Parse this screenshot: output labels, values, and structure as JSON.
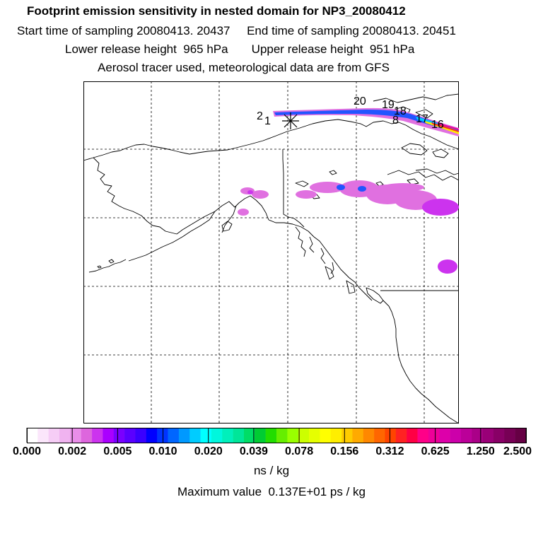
{
  "titles": {
    "line1": "Footprint emission sensitivity in nested domain for NP3_20080412",
    "line2": "Start time of sampling 20080413. 20437     End time of sampling 20080413. 20451",
    "line3": "Lower release height  965 hPa       Upper release height  951 hPa",
    "line4": "Aerosol tracer used, meteorological data are from GFS"
  },
  "colorbar": {
    "tick_labels": [
      "0.000",
      "0.002",
      "0.005",
      "0.010",
      "0.020",
      "0.039",
      "0.078",
      "0.156",
      "0.312",
      "0.625",
      "1.250",
      "2.500"
    ],
    "colors": [
      "#ffffff",
      "#fbe6fb",
      "#f6cdf6",
      "#f0b3f0",
      "#e98ee9",
      "#dd66dd",
      "#cc33ee",
      "#aa00ff",
      "#7a00ff",
      "#5a00ff",
      "#3a00ff",
      "#0000ff",
      "#0033ff",
      "#0066ff",
      "#0099ff",
      "#00ccff",
      "#00ffff",
      "#00f7dd",
      "#00f0bb",
      "#00e699",
      "#00dd66",
      "#00cc33",
      "#22dd00",
      "#66ee00",
      "#99ff00",
      "#ccff00",
      "#e6ff00",
      "#ffff00",
      "#ffee00",
      "#ffcc00",
      "#ffaa00",
      "#ff8800",
      "#ff6600",
      "#ff4400",
      "#ff2222",
      "#ff0044",
      "#ff0088",
      "#ee0099",
      "#dd00aa",
      "#cc00aa",
      "#bb0099",
      "#aa0088",
      "#990077",
      "#880066",
      "#770055",
      "#660044"
    ],
    "units": "ns / kg",
    "max_value": "Maximum value  0.137E+01 ps / kg"
  },
  "trajectory_labels": [
    "2",
    "1",
    "20",
    "19",
    "18",
    "8",
    "17",
    "16"
  ],
  "plume_colors": {
    "light": "#e070e0",
    "mid": "#cc33ee",
    "blue": "#2255ff",
    "cyan": "#00ccff",
    "yellow": "#ffee00",
    "red": "#ff2222",
    "magenta": "#ee0099"
  }
}
